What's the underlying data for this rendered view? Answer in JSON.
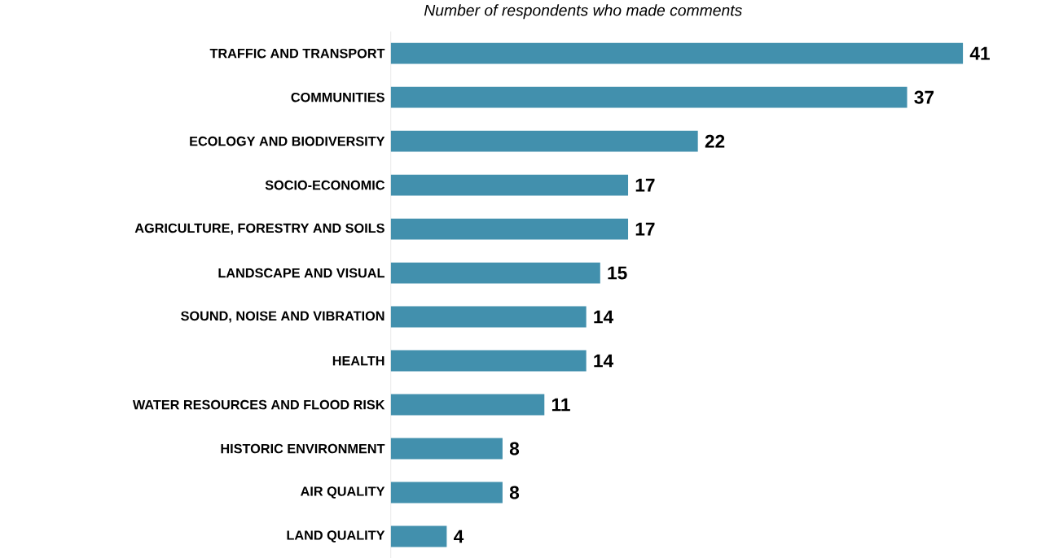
{
  "chart_data": {
    "type": "bar",
    "orientation": "horizontal",
    "title": "Number of respondents who made comments",
    "categories": [
      "TRAFFIC AND TRANSPORT",
      "COMMUNITIES",
      "ECOLOGY AND BIODIVERSITY",
      "SOCIO-ECONOMIC",
      "AGRICULTURE, FORESTRY AND SOILS",
      "LANDSCAPE AND VISUAL",
      "SOUND, NOISE AND VIBRATION",
      "HEALTH",
      "WATER RESOURCES AND FLOOD RISK",
      "HISTORIC ENVIRONMENT",
      "AIR QUALITY",
      "LAND QUALITY"
    ],
    "values": [
      41,
      37,
      22,
      17,
      17,
      15,
      14,
      14,
      11,
      8,
      8,
      4
    ],
    "color": "#4290ad",
    "data_labels": true
  }
}
